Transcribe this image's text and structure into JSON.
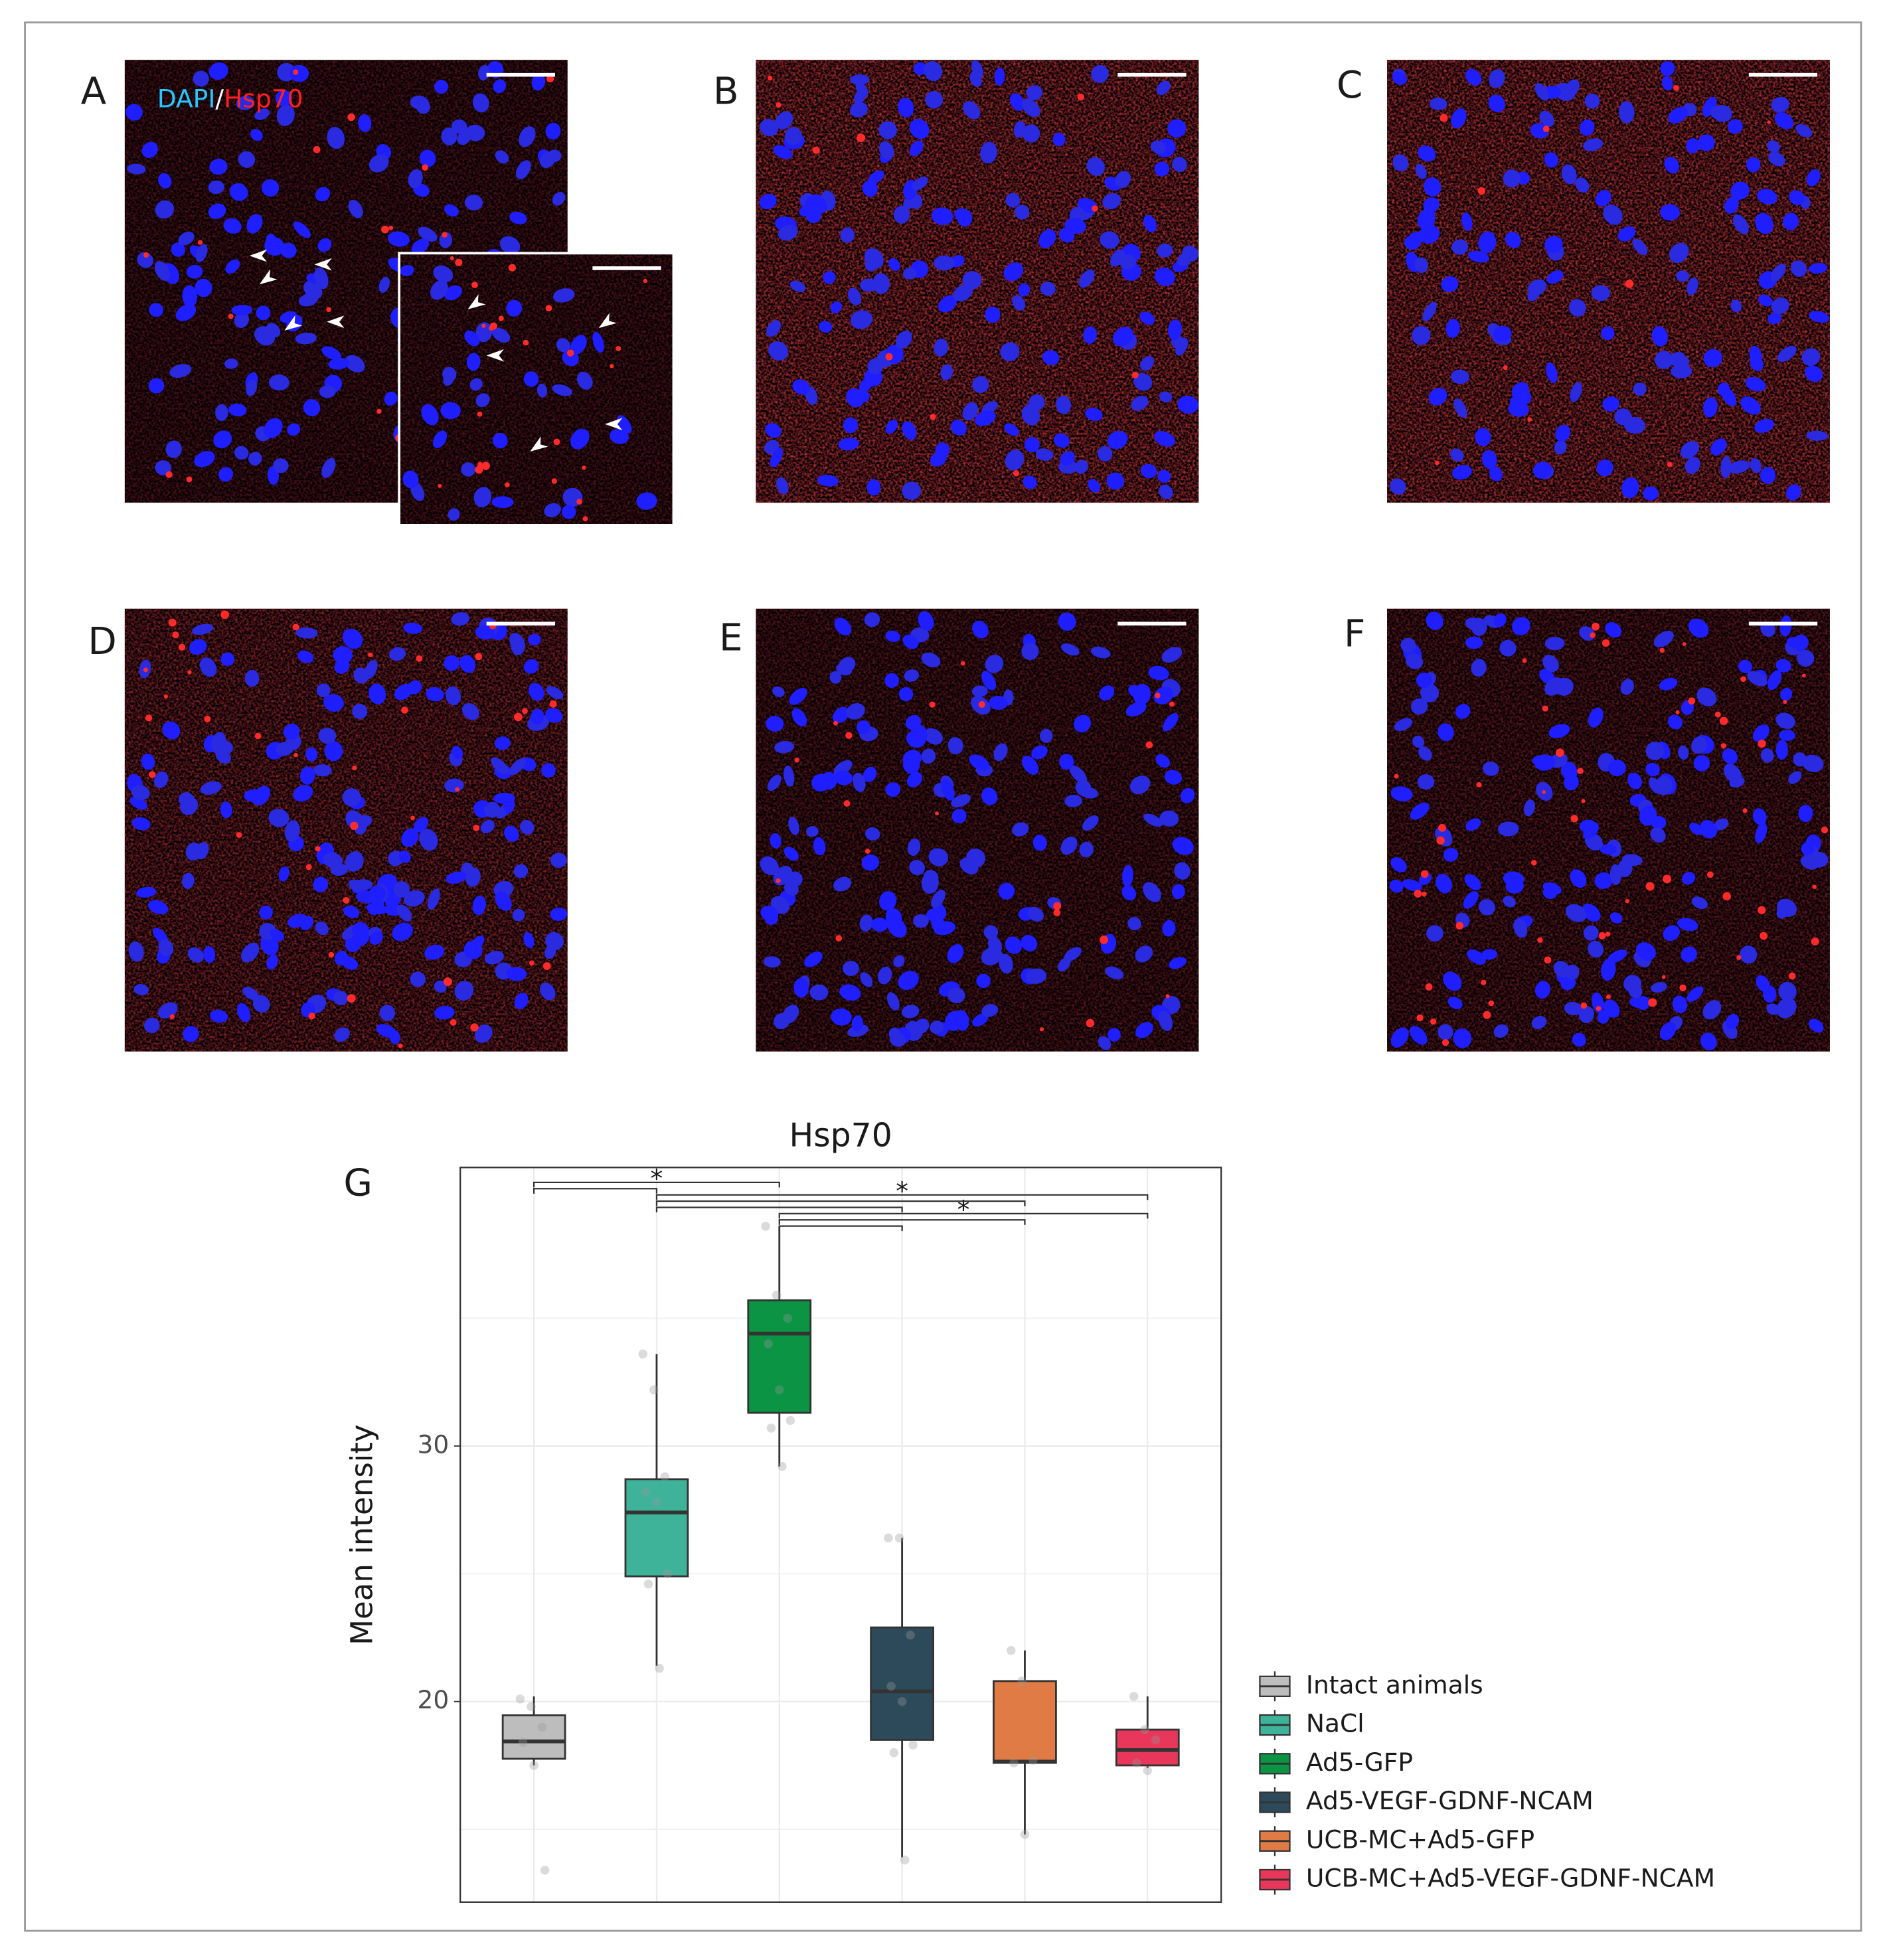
{
  "figure": {
    "panels": [
      "A",
      "B",
      "C",
      "D",
      "E",
      "F"
    ],
    "stain_labels": [
      "DAPI",
      "/",
      "Hsp70"
    ],
    "chart_label": "G"
  },
  "chart_data": {
    "type": "box",
    "title": "Hsp70",
    "y_label": "Mean intensity",
    "categories": [
      "Intact animals",
      "NaCl",
      "Ad5-GFP",
      "Ad5-VEGF-GDNF-NCAM",
      "UCB-MC+Ad5-GFP",
      "UCB-MC+Ad5-VEGF-GDNF-NCAM"
    ],
    "colors": [
      "#bdbdbd",
      "#3fb39a",
      "#0a9444",
      "#2d4a5b",
      "#e07b45",
      "#e8375a"
    ],
    "boxes": [
      {
        "min": 17.5,
        "q1": 17.76,
        "median": 18.44,
        "q3": 19.46,
        "max": 20.2,
        "points": [
          20.1,
          19.8,
          19.0,
          18.4,
          17.5,
          13.4
        ]
      },
      {
        "min": 21.4,
        "q1": 24.9,
        "median": 27.4,
        "q3": 28.7,
        "max": 33.6,
        "points": [
          33.6,
          32.2,
          28.8,
          28.2,
          27.8,
          25.0,
          24.6,
          21.3
        ]
      },
      {
        "min": 29.2,
        "q1": 31.3,
        "median": 34.4,
        "q3": 35.7,
        "max": 38.6,
        "points": [
          38.6,
          35.9,
          35.0,
          34.0,
          32.2,
          31.0,
          30.7,
          29.2
        ]
      },
      {
        "min": 13.9,
        "q1": 18.5,
        "median": 20.4,
        "q3": 22.9,
        "max": 26.4,
        "points": [
          26.4,
          26.4,
          22.6,
          20.6,
          20.0,
          18.3,
          18.0,
          13.8
        ]
      },
      {
        "min": 14.8,
        "q1": 17.6,
        "median": 17.65,
        "q3": 20.8,
        "max": 22.0,
        "points": [
          22.0,
          20.8,
          17.7,
          17.6,
          14.8
        ]
      },
      {
        "min": 17.4,
        "q1": 17.5,
        "median": 18.1,
        "q3": 18.9,
        "max": 20.2,
        "points": [
          20.2,
          18.9,
          18.5,
          17.6,
          17.3
        ]
      }
    ],
    "ylim": [
      12.15,
      40.9
    ],
    "yticks": [
      20,
      30
    ],
    "minor_yticks": [
      15,
      25,
      35
    ],
    "grid": true,
    "legend_position": "right",
    "comparisons": [
      {
        "groups": [
          0,
          2
        ],
        "label": "*"
      },
      {
        "groups": [
          0,
          1
        ]
      },
      {
        "groups": [
          1,
          5
        ],
        "label": "*"
      },
      {
        "groups": [
          1,
          4
        ]
      },
      {
        "groups": [
          1,
          3
        ]
      },
      {
        "groups": [
          2,
          5
        ],
        "label": "*"
      },
      {
        "groups": [
          2,
          4
        ]
      },
      {
        "groups": [
          2,
          3
        ]
      }
    ]
  }
}
